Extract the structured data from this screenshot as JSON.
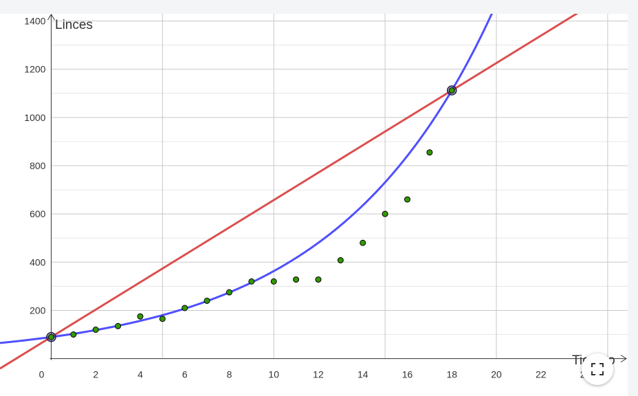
{
  "chart_data": {
    "type": "scatter",
    "xlabel": "Tiempo",
    "ylabel": "Linces",
    "xlim": [
      -2.3,
      25.9
    ],
    "ylim": [
      -155,
      1430
    ],
    "x_ticks": [
      0,
      2,
      4,
      6,
      8,
      10,
      12,
      14,
      16,
      18,
      20,
      22,
      24
    ],
    "y_ticks": [
      200,
      400,
      600,
      800,
      1000,
      1200,
      1400
    ],
    "grid": true,
    "series": [
      {
        "kind": "points",
        "color": "#339900",
        "points": [
          [
            1,
            100
          ],
          [
            2,
            120
          ],
          [
            3,
            135
          ],
          [
            4,
            175
          ],
          [
            5,
            165
          ],
          [
            6,
            210
          ],
          [
            7,
            240
          ],
          [
            8,
            275
          ],
          [
            9,
            320
          ],
          [
            10,
            320
          ],
          [
            11,
            328
          ],
          [
            12,
            328
          ],
          [
            13,
            408
          ],
          [
            14,
            480
          ],
          [
            15,
            600
          ],
          [
            16,
            660
          ],
          [
            17,
            855
          ]
        ]
      },
      {
        "kind": "linear",
        "color": "#db4f4f",
        "formula": "y = 89.5 + 56.8x"
      },
      {
        "kind": "exponential",
        "color": "#4f4fff",
        "formula": "y = 89.5 * e^(0.14x)"
      },
      {
        "kind": "highlight-points",
        "color": "#339900",
        "points": [
          [
            0,
            89.5
          ],
          [
            18,
            1112
          ]
        ]
      }
    ]
  },
  "controls": {
    "fullscreen_icon": "fullscreen-icon"
  }
}
